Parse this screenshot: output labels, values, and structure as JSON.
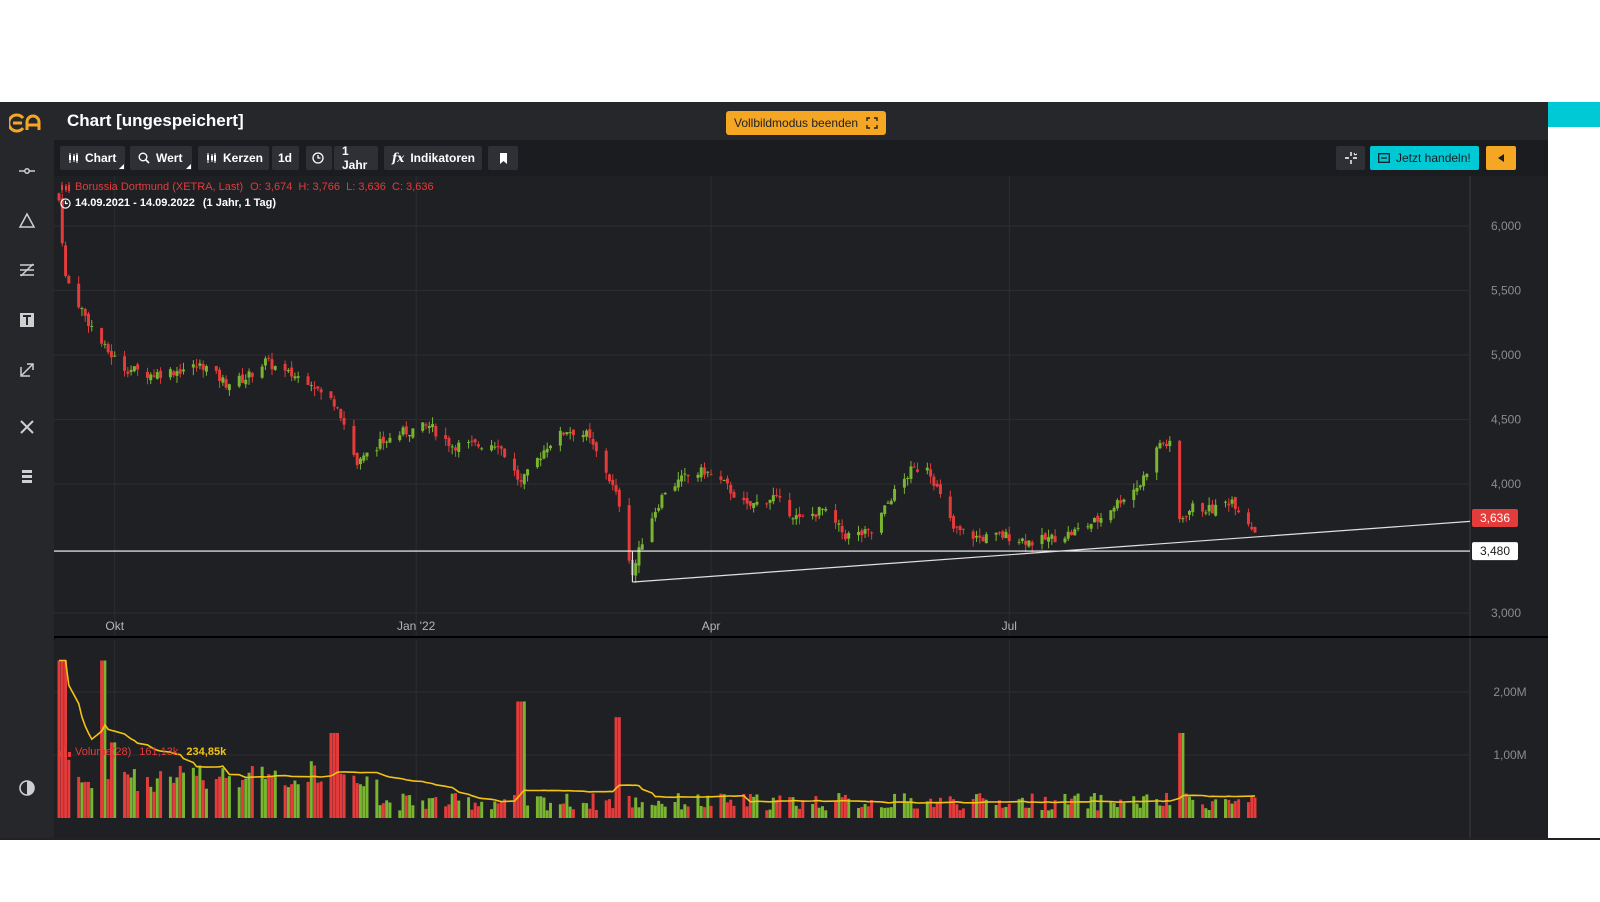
{
  "app": {
    "title": "Chart [ungespeichert]",
    "fullscreen_label": "Vollbildmodus beenden"
  },
  "toolbar": {
    "chart_label": "Chart",
    "value_label": "Wert",
    "candles_label": "Kerzen",
    "interval_label": "1d",
    "range_label": "1 Jahr",
    "indicators_label": "Indikatoren",
    "trade_label": "Jetzt handeln!"
  },
  "sidebar": {
    "icons": [
      "logo-icon",
      "crosshair-line-icon",
      "triangle-icon",
      "fibonacci-icon",
      "text-icon",
      "arrow-draw-icon",
      "tools-icon",
      "layers-icon",
      "contrast-icon"
    ]
  },
  "colors": {
    "up": "#7ab530",
    "down": "#e43b3b",
    "volume_ma": "#f2c314",
    "accent_orange": "#f5a623",
    "accent_cyan": "#00c9d6"
  },
  "legend": {
    "price": {
      "name": "Borussia Dortmund (XETRA, Last)",
      "ohlc": "O: 3,674  H: 3,766  L: 3,636  C: 3,636"
    },
    "range_dates": "14.09.2021 - 14.09.2022",
    "range_desc": "(1 Jahr, 1 Tag)",
    "volume": {
      "name": "Volume(28)",
      "value": "161,13k",
      "ma_value": "234,85k"
    }
  },
  "chart_data": {
    "type": "candlestick",
    "x_tick_labels": [
      "Okt",
      "Jan '22",
      "Apr",
      "Jul"
    ],
    "y_tick_labels": [
      "6,000",
      "5,500",
      "5,000",
      "4,500",
      "4,000",
      "3,000"
    ],
    "ylim": [
      2.98,
      6.1
    ],
    "last_price_label": "3,636",
    "horizontal_line_label": "3,480",
    "horizontal_line_value": 3.48,
    "trend_line": {
      "start": [
        "2022-03-08",
        3.24
      ],
      "end": [
        "2022-11-14",
        3.71
      ]
    },
    "close_key_points": [
      [
        "2021-09-14",
        6.2
      ],
      [
        "2021-09-16",
        5.6
      ],
      [
        "2021-09-22",
        5.3
      ],
      [
        "2021-09-28",
        5.05
      ],
      [
        "2021-10-04",
        4.9
      ],
      [
        "2021-10-12",
        4.85
      ],
      [
        "2021-10-20",
        4.88
      ],
      [
        "2021-10-28",
        4.92
      ],
      [
        "2021-11-04",
        4.78
      ],
      [
        "2021-11-10",
        4.82
      ],
      [
        "2021-11-16",
        4.95
      ],
      [
        "2021-11-22",
        4.86
      ],
      [
        "2021-11-30",
        4.8
      ],
      [
        "2021-12-03",
        4.7
      ],
      [
        "2021-12-08",
        4.62
      ],
      [
        "2021-12-14",
        4.15
      ],
      [
        "2021-12-20",
        4.3
      ],
      [
        "2021-12-28",
        4.4
      ],
      [
        "2022-01-05",
        4.45
      ],
      [
        "2022-01-12",
        4.3
      ],
      [
        "2022-01-20",
        4.3
      ],
      [
        "2022-01-26",
        4.32
      ],
      [
        "2022-02-02",
        4.0
      ],
      [
        "2022-02-10",
        4.3
      ],
      [
        "2022-02-16",
        4.42
      ],
      [
        "2022-02-22",
        4.38
      ],
      [
        "2022-02-28",
        4.1
      ],
      [
        "2022-03-04",
        3.85
      ],
      [
        "2022-03-08",
        3.3
      ],
      [
        "2022-03-12",
        3.65
      ],
      [
        "2022-03-18",
        3.95
      ],
      [
        "2022-03-24",
        4.05
      ],
      [
        "2022-03-30",
        4.1
      ],
      [
        "2022-04-05",
        4.0
      ],
      [
        "2022-04-12",
        3.82
      ],
      [
        "2022-04-20",
        3.9
      ],
      [
        "2022-04-28",
        3.72
      ],
      [
        "2022-05-05",
        3.8
      ],
      [
        "2022-05-12",
        3.6
      ],
      [
        "2022-05-20",
        3.62
      ],
      [
        "2022-05-26",
        3.9
      ],
      [
        "2022-06-01",
        4.1
      ],
      [
        "2022-06-06",
        4.15
      ],
      [
        "2022-06-10",
        3.9
      ],
      [
        "2022-06-14",
        3.65
      ],
      [
        "2022-06-22",
        3.58
      ],
      [
        "2022-06-30",
        3.6
      ],
      [
        "2022-07-08",
        3.55
      ],
      [
        "2022-07-14",
        3.58
      ],
      [
        "2022-07-20",
        3.62
      ],
      [
        "2022-07-28",
        3.72
      ],
      [
        "2022-08-04",
        3.88
      ],
      [
        "2022-08-10",
        4.0
      ],
      [
        "2022-08-16",
        4.32
      ],
      [
        "2022-08-19",
        4.3
      ],
      [
        "2022-08-22",
        3.72
      ],
      [
        "2022-08-26",
        3.82
      ],
      [
        "2022-09-01",
        3.8
      ],
      [
        "2022-09-07",
        3.88
      ],
      [
        "2022-09-14",
        3.636
      ]
    ],
    "volume": {
      "y_tick_labels": [
        "2,00M",
        "1,00M"
      ],
      "ylim": [
        0,
        2.6
      ],
      "unit": "M",
      "spikes": [
        [
          "2021-09-15",
          2.5
        ],
        [
          "2021-09-27",
          2.5
        ],
        [
          "2021-10-01",
          1.2
        ],
        [
          "2021-12-07",
          1.35
        ],
        [
          "2022-02-02",
          1.85
        ],
        [
          "2022-03-04",
          1.6
        ],
        [
          "2022-08-22",
          1.35
        ]
      ],
      "moving_average_level": 0.25
    }
  }
}
